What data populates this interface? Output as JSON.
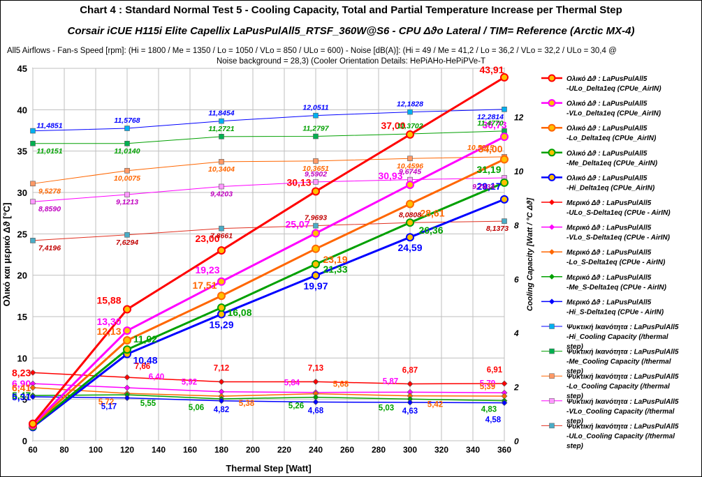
{
  "header": {
    "title": "Chart 4 :  Standard  Normal Test  5  -  Cooling Capacity,  Total and Partial Temperature Increase per Thermal Step",
    "subtitle": "Corsair iCUE H115i Elite Capellix  LaPusPulAll5_RTSF_360W@S6 - CPU  Δϑo Lateral / TIM= Reference (Arctic MX-4)",
    "note_line1": "All5  Airflows  -  Fan-s Speed [rpm]: (Hi = 1800 / Me = 1350 / Lo = 1050 / VLo = 850 / ULo = 600) - Noise [dB(A)]: (Hi = 49 / Me = 41,2 / Lo = 36,2 / VLo = 32,2 / ULo = 30,4 @",
    "note_line2": "Noise background  = 28,3)        (Cooler Orientation Details: HePiAHo-HePiPVe-T"
  },
  "chart_data": {
    "type": "line",
    "x": [
      60,
      120,
      180,
      240,
      300,
      360
    ],
    "xlabel": "Thermal Step [Watt]",
    "ylabel_left": "Ολικό  και  μερικό   Δϑ [°C]",
    "ylabel_right": "Cooling Capacity  [Watt / °C Δϑ]",
    "xlim": [
      60,
      360
    ],
    "ylim_left": [
      0,
      45
    ],
    "ylim_right": [
      0,
      13.8
    ],
    "x_ticks": [
      "60",
      "80",
      "100",
      "120",
      "140",
      "160",
      "180",
      "200",
      "220",
      "240",
      "260",
      "280",
      "300",
      "320",
      "340",
      "360"
    ],
    "y_ticks_left": [
      "0",
      "5",
      "10",
      "15",
      "20",
      "25",
      "30",
      "35",
      "40",
      "45"
    ],
    "y_ticks_right": [
      "0",
      "2",
      "4",
      "6",
      "8",
      "10",
      "12"
    ],
    "grid": true,
    "legend_position": "right",
    "series": [
      {
        "name": "Ολικό  Δϑ : LaPusPulAll5 -ULo_Delta1eq (CPUe_AirIN)",
        "axis": "left",
        "color": "#ff0000",
        "marker": "circle",
        "marker_fill": "#ffc000",
        "width": 3,
        "values": [
          2.05,
          15.88,
          23.0,
          30.13,
          37.0,
          43.91
        ],
        "labels": [
          "",
          "15,88",
          "23,00",
          "30,13",
          "37,00",
          "43,91"
        ]
      },
      {
        "name": "Ολικό  Δϑ : LaPusPulAll5 -VLo_Delta1eq (CPUe_AirIN)",
        "axis": "left",
        "color": "#ff00ff",
        "marker": "circle",
        "marker_fill": "#ffc000",
        "width": 3,
        "values": [
          1.95,
          13.3,
          19.23,
          25.07,
          30.93,
          36.73
        ],
        "labels": [
          "",
          "13,30",
          "19,23",
          "25,07",
          "30,93",
          "36,73"
        ]
      },
      {
        "name": "Ολικό  Δϑ : LaPusPulAll5 -Lo_Delta1eq (CPUe_AirIN)",
        "axis": "left",
        "color": "#ff6600",
        "marker": "circle",
        "marker_fill": "#ffc000",
        "width": 3,
        "values": [
          1.85,
          12.13,
          17.51,
          23.19,
          28.61,
          34.0
        ],
        "labels": [
          "",
          "12,13",
          "17,51",
          "23,19",
          "28,61",
          "34,00"
        ]
      },
      {
        "name": "Ολικό  Δϑ : LaPusPulAll5 -Me_Delta1eq (CPUe_AirIN)",
        "axis": "left",
        "color": "#00a000",
        "marker": "circle",
        "marker_fill": "#ffc000",
        "width": 3,
        "values": [
          1.75,
          11.02,
          16.08,
          21.33,
          26.36,
          31.19
        ],
        "labels": [
          "",
          "11,02",
          "16,08",
          "21,33",
          "26,36",
          "31,19"
        ]
      },
      {
        "name": "Ολικό  Δϑ : LaPusPulAll5 -Hi_Delta1eq (CPUe_AirIN)",
        "axis": "left",
        "color": "#0000ff",
        "marker": "circle",
        "marker_fill": "#ffc000",
        "width": 3,
        "values": [
          1.65,
          10.48,
          15.29,
          19.97,
          24.59,
          29.17
        ],
        "labels": [
          "",
          "10,48",
          "15,29",
          "19,97",
          "24,59",
          "29,17"
        ]
      },
      {
        "name": "Μερικό  Δϑ : LaPusPulAll5 -ULo_S-Delta1eq (CPUe - AirIN)",
        "axis": "left",
        "color": "#ff0000",
        "marker": "diamond",
        "marker_fill": "#ff0000",
        "width": 1.5,
        "values": [
          8.23,
          7.66,
          7.12,
          7.13,
          6.87,
          6.91
        ],
        "labels": [
          "8,23",
          "7,66",
          "7,12",
          "7,13",
          "6,87",
          "6,91"
        ]
      },
      {
        "name": "Μερικό  Δϑ : LaPusPulAll5 -VLo_S-Delta1eq (CPUe - AirIN)",
        "axis": "left",
        "color": "#ff00ff",
        "marker": "diamond",
        "marker_fill": "#ff00ff",
        "width": 1.5,
        "values": [
          6.9,
          6.4,
          5.92,
          5.84,
          5.87,
          5.79
        ],
        "labels": [
          "6,90",
          "6,40",
          "5,92",
          "5,84",
          "5,87",
          "5,79"
        ]
      },
      {
        "name": "Μερικό  Δϑ : LaPusPulAll5 -Lo_S-Delta1eq (CPUe - AirIN)",
        "axis": "left",
        "color": "#ff6600",
        "marker": "diamond",
        "marker_fill": "#ff6600",
        "width": 1.5,
        "values": [
          6.41,
          5.72,
          5.38,
          5.68,
          5.42,
          5.39
        ],
        "labels": [
          "6,41",
          "5,72",
          "5,38",
          "5,68",
          "5,42",
          "5,39"
        ]
      },
      {
        "name": "Μερικό  Δϑ : LaPusPulAll5 -Me_S-Delta1eq (CPUe - AirIN)",
        "axis": "left",
        "color": "#00a000",
        "marker": "diamond",
        "marker_fill": "#00a000",
        "width": 1.5,
        "values": [
          5.47,
          5.55,
          5.06,
          5.26,
          5.03,
          4.83
        ],
        "labels": [
          "5,47",
          "5,55",
          "5,06",
          "5,26",
          "5,03",
          "4,83"
        ]
      },
      {
        "name": "Μερικό  Δϑ : LaPusPulAll5 -Hi_S-Delta1eq (CPUe - AirIN)",
        "axis": "left",
        "color": "#0000ff",
        "marker": "diamond",
        "marker_fill": "#0000ff",
        "width": 1.5,
        "values": [
          5.31,
          5.17,
          4.82,
          4.68,
          4.63,
          4.58
        ],
        "labels": [
          "5,31",
          "5,17",
          "4,82",
          "4,68",
          "4,63",
          "4,58"
        ]
      },
      {
        "name": "Ψυκτική Ικανότητα : LaPusPulAll5 -Hi_Cooling Capacity (/thermal step)",
        "axis": "right",
        "color": "#0000ff",
        "marker": "square",
        "marker_fill": "#00b0f0",
        "width": 1,
        "values": [
          11.4851,
          11.5768,
          11.8454,
          12.0511,
          12.1828,
          12.2814
        ],
        "labels": [
          "11,4851",
          "11,5768",
          "11,8454",
          "12,0511",
          "12,1828",
          "12,2814"
        ]
      },
      {
        "name": "Ψυκτική Ικανότητα : LaPusPulAll5 -Me_Cooling Capacity (/thermal step)",
        "axis": "right",
        "color": "#00a000",
        "marker": "square",
        "marker_fill": "#00b050",
        "width": 1,
        "values": [
          11.0151,
          11.014,
          11.2721,
          11.2797,
          11.3702,
          11.477
        ],
        "labels": [
          "11,0151",
          "11,0140",
          "11,2721",
          "11,2797",
          "11,3702",
          "11,4770"
        ]
      },
      {
        "name": "Ψυκτική Ικανότητα : LaPusPulAll5 -Lo_Cooling Capacity (/thermal step)",
        "axis": "right",
        "color": "#ff6600",
        "marker": "square",
        "marker_fill": "#ff9966",
        "width": 1,
        "values": [
          9.5278,
          10.0075,
          10.3404,
          10.3651,
          10.4596,
          10.5215
        ],
        "labels": [
          "9,5278",
          "10,0075",
          "10,3404",
          "10,3651",
          "10,4596",
          "10,5215"
        ]
      },
      {
        "name": "Ψυκτική Ικανότητα : LaPusPulAll5 -VLo_Cooling Capacity (/thermal step)",
        "axis": "right",
        "color": "#ff00ff",
        "marker": "square",
        "marker_fill": "#ff99ff",
        "width": 1,
        "values": [
          8.859,
          9.1213,
          9.4203,
          9.5902,
          9.6745,
          9.7434
        ],
        "labels": [
          "8,8590",
          "9,1213",
          "9,4203",
          "9,5902",
          "9,6745",
          "9,7434"
        ]
      },
      {
        "name": "Ψυκτική Ικανότητα : LaPusPulAll5 -ULo_Cooling Capacity (/thermal step)",
        "axis": "right",
        "color": "#e03020",
        "marker": "square",
        "marker_fill": "#4bacc6",
        "width": 1,
        "values": [
          7.4196,
          7.6294,
          7.8661,
          7.9693,
          8.0808,
          8.1373
        ],
        "labels": [
          "7,4196",
          "7,6294",
          "7,8661",
          "7,9693",
          "8,0808",
          "8,1373"
        ]
      }
    ]
  }
}
